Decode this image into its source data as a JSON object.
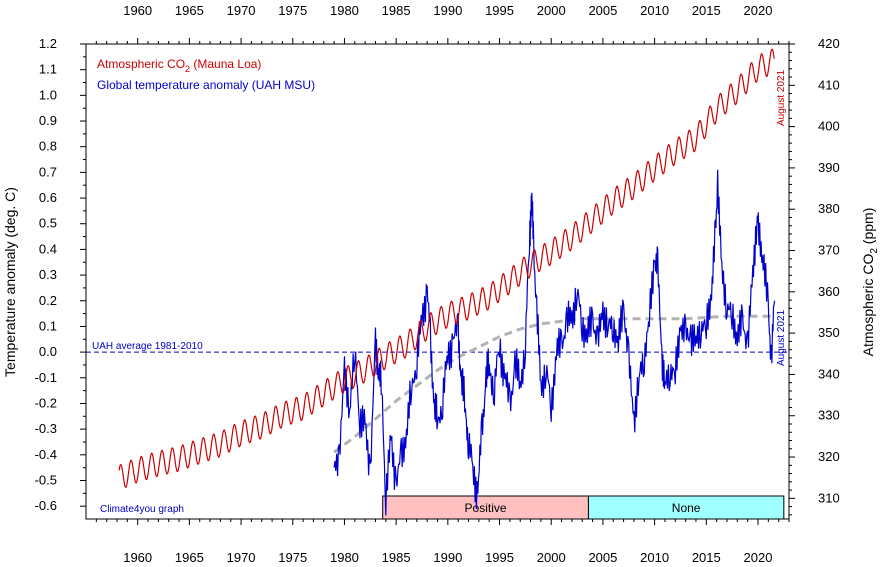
{
  "chart_data": {
    "type": "line",
    "x_ticks": [
      1960,
      1965,
      1970,
      1975,
      1980,
      1985,
      1990,
      1995,
      2000,
      2005,
      2010,
      2015,
      2020
    ],
    "xlim": [
      1955.0,
      2023.0
    ],
    "left_axis": {
      "label": "Temperature anomaly (deg. C)",
      "ylim": [
        -0.65,
        1.2
      ],
      "ticks": [
        -0.6,
        -0.5,
        -0.4,
        -0.3,
        -0.2,
        -0.1,
        0.0,
        0.1,
        0.2,
        0.3,
        0.4,
        0.5,
        0.6,
        0.7,
        0.8,
        0.9,
        1.0,
        1.1,
        1.2
      ],
      "tick_labels": [
        "-0.6",
        "-0.5",
        "-0.4",
        "-0.3",
        "-0.2",
        "-0.1",
        "0.0",
        "0.1",
        "0.2",
        "0.3",
        "0.4",
        "0.5",
        "0.6",
        "0.7",
        "0.8",
        "0.9",
        "1.0",
        "1.1",
        "1.2"
      ]
    },
    "right_axis": {
      "label": "Atmospheric CO2 (ppm)",
      "label_main": "Atmospheric CO",
      "label_sub": "2",
      "label_suffix": " (ppm)",
      "ylim": [
        305.0,
        420.0
      ],
      "ticks": [
        310,
        320,
        330,
        340,
        350,
        360,
        370,
        380,
        390,
        400,
        410,
        420
      ]
    },
    "series": [
      {
        "name": "Atmospheric CO2 (Mauna Loa)",
        "name_main": "Atmospheric CO",
        "name_sub": "2",
        "name_suffix": " (Mauna Loa)",
        "color": "#cc0000",
        "axis": "right",
        "x": [
          1958.2,
          1960.0,
          1962.0,
          1964.0,
          1966.0,
          1968.0,
          1970.0,
          1972.0,
          1974.0,
          1976.0,
          1978.0,
          1980.0,
          1982.0,
          1984.0,
          1986.0,
          1988.0,
          1990.0,
          1992.0,
          1994.0,
          1996.0,
          1998.0,
          2000.0,
          2002.0,
          2004.0,
          2006.0,
          2008.0,
          2010.0,
          2012.0,
          2014.0,
          2016.0,
          2018.0,
          2020.0,
          2021.6
        ],
        "y": [
          315.0,
          316.9,
          318.4,
          319.6,
          321.4,
          323.1,
          325.7,
          327.5,
          330.2,
          332.0,
          335.4,
          338.7,
          341.1,
          344.4,
          347.2,
          351.4,
          354.4,
          356.3,
          358.8,
          362.6,
          366.7,
          369.6,
          373.2,
          377.5,
          381.9,
          385.6,
          389.9,
          393.9,
          397.2,
          404.2,
          408.7,
          414.2,
          416.0
        ],
        "seasonal_amplitude_ppm": 3.0
      },
      {
        "name": "Global temperature anomaly (UAH MSU)",
        "color": "#0000cc",
        "axis": "left",
        "x": [
          1979.0,
          1979.5,
          1980.0,
          1980.5,
          1981.0,
          1981.5,
          1982.0,
          1982.5,
          1983.0,
          1983.3,
          1983.6,
          1984.0,
          1984.5,
          1985.0,
          1985.5,
          1986.0,
          1986.5,
          1987.0,
          1987.5,
          1988.0,
          1988.3,
          1988.7,
          1989.0,
          1989.5,
          1990.0,
          1990.5,
          1991.0,
          1991.3,
          1991.7,
          1992.0,
          1992.5,
          1992.9,
          1993.3,
          1993.7,
          1994.0,
          1994.5,
          1995.0,
          1995.5,
          1996.0,
          1996.5,
          1997.0,
          1997.5,
          1997.9,
          1998.1,
          1998.3,
          1998.6,
          1999.0,
          1999.5,
          2000.0,
          2000.5,
          2001.0,
          2001.5,
          2002.0,
          2002.5,
          2003.0,
          2003.5,
          2004.0,
          2004.5,
          2005.0,
          2005.5,
          2006.0,
          2006.5,
          2007.0,
          2007.5,
          2008.0,
          2008.5,
          2009.0,
          2009.5,
          2010.0,
          2010.3,
          2010.7,
          2011.0,
          2011.5,
          2012.0,
          2012.5,
          2013.0,
          2013.5,
          2014.0,
          2014.5,
          2015.0,
          2015.5,
          2015.9,
          2016.1,
          2016.5,
          2017.0,
          2017.5,
          2018.0,
          2018.5,
          2019.0,
          2019.5,
          2019.9,
          2020.1,
          2020.5,
          2021.0,
          2021.3,
          2021.6
        ],
        "y": [
          -0.48,
          -0.38,
          -0.1,
          -0.2,
          -0.02,
          -0.25,
          -0.3,
          -0.45,
          0.01,
          -0.05,
          -0.15,
          -0.55,
          -0.35,
          -0.5,
          -0.42,
          -0.3,
          -0.15,
          -0.02,
          0.12,
          0.25,
          0.05,
          -0.2,
          -0.28,
          -0.18,
          -0.02,
          0.05,
          0.08,
          -0.1,
          -0.22,
          -0.35,
          -0.48,
          -0.55,
          -0.3,
          -0.1,
          -0.05,
          -0.15,
          0.03,
          -0.1,
          -0.2,
          -0.05,
          -0.12,
          0.02,
          0.45,
          0.6,
          0.42,
          0.15,
          -0.12,
          -0.08,
          -0.2,
          -0.02,
          0.05,
          0.1,
          0.15,
          0.22,
          0.12,
          0.05,
          0.15,
          0.02,
          0.18,
          0.08,
          0.12,
          0.02,
          0.2,
          -0.05,
          -0.25,
          -0.12,
          0.0,
          0.12,
          0.38,
          0.32,
          0.0,
          -0.15,
          -0.05,
          -0.1,
          0.12,
          0.05,
          0.08,
          0.02,
          0.12,
          0.08,
          0.25,
          0.45,
          0.68,
          0.3,
          0.2,
          0.12,
          0.08,
          0.1,
          0.05,
          0.28,
          0.55,
          0.45,
          0.38,
          0.15,
          -0.02,
          0.2
        ]
      },
      {
        "name": "",
        "color": "#b3b3b3",
        "axis": "left",
        "dashed": true,
        "x": [
          1979.0,
          1981.0,
          1983.0,
          1985.0,
          1987.0,
          1989.0,
          1991.0,
          1993.0,
          1995.0,
          1997.0,
          1999.0,
          2001.0,
          2003.0,
          2005.0,
          2007.0,
          2009.0,
          2011.0,
          2013.0,
          2015.0,
          2017.0,
          2019.0,
          2021.6
        ],
        "y": [
          -0.39,
          -0.33,
          -0.26,
          -0.19,
          -0.13,
          -0.07,
          -0.02,
          0.02,
          0.06,
          0.09,
          0.11,
          0.12,
          0.13,
          0.13,
          0.13,
          0.13,
          0.13,
          0.13,
          0.135,
          0.14,
          0.14,
          0.14
        ]
      }
    ],
    "reference_line": {
      "label": "UAH average 1981-2010",
      "y": 0.0,
      "color": "#0000cc"
    },
    "end_annotations": [
      {
        "text": "August 2021",
        "color": "#cc0000",
        "series": "co2"
      },
      {
        "text": "August 2021",
        "color": "#0000cc",
        "series": "temperature"
      }
    ],
    "enso_bands": [
      {
        "label": "Positive",
        "x_start": 1983.7,
        "x_end": 2003.6,
        "color": "#ffc0c0"
      },
      {
        "label": "None",
        "x_start": 2003.6,
        "x_end": 2022.5,
        "color": "#a0ffff"
      }
    ],
    "credit": "Climate4you graph",
    "legend_position": "top-left",
    "grid": false
  }
}
